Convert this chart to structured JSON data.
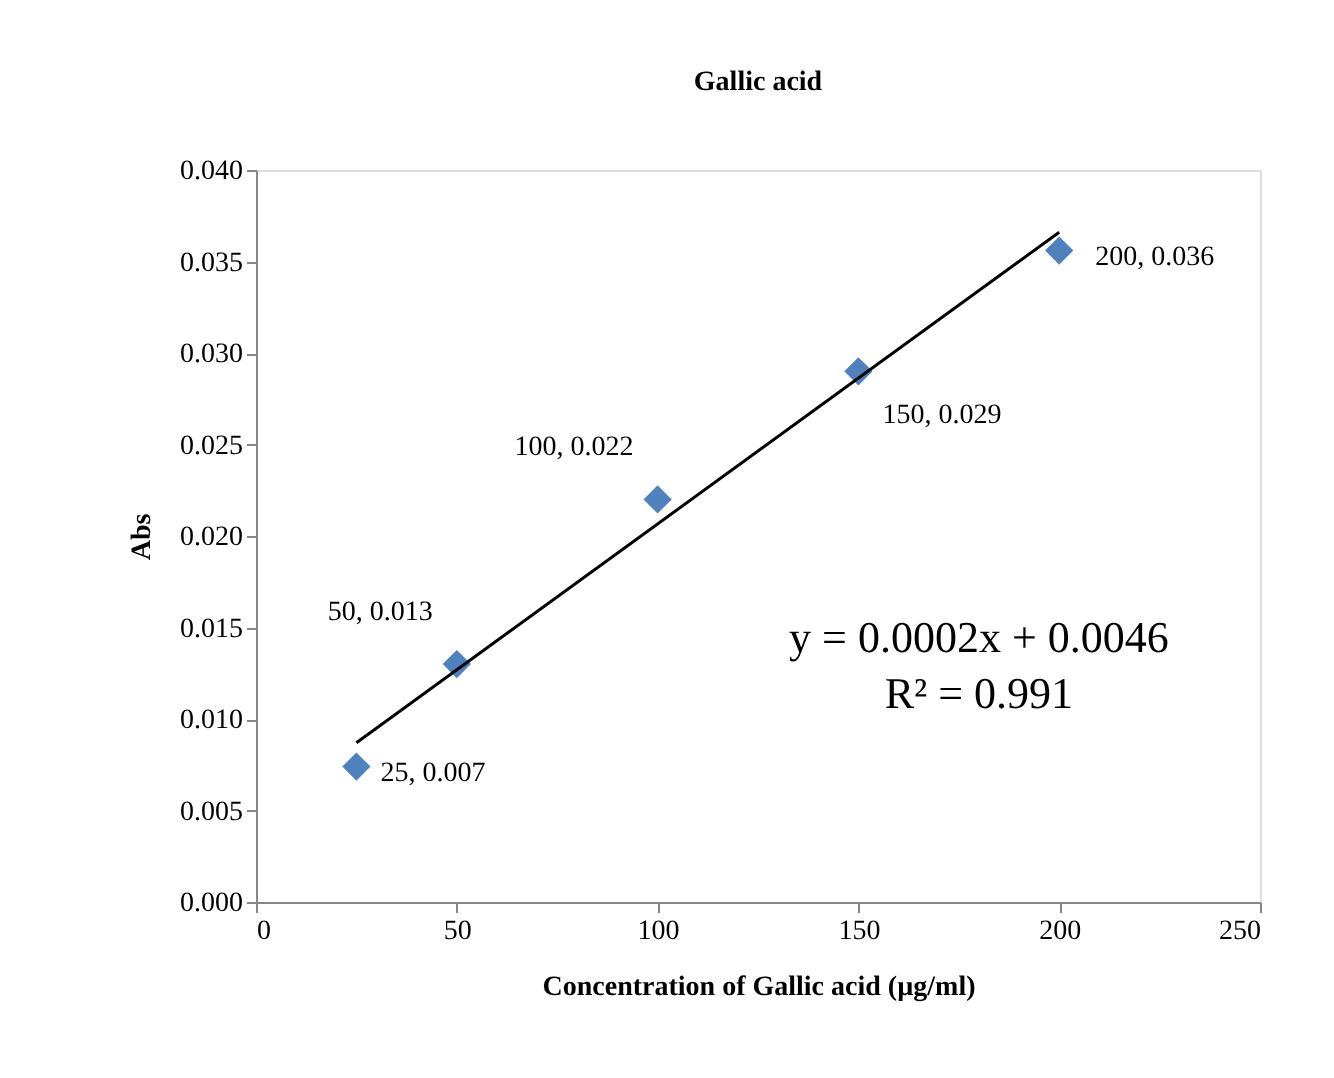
{
  "chart_data": {
    "type": "scatter",
    "title": "Gallic acid",
    "xlabel": "Concentration of Gallic acid  (µg/ml)",
    "ylabel": "Abs",
    "x": [
      25,
      50,
      100,
      150,
      200
    ],
    "series": [
      {
        "marker": "diamond",
        "color": "#4f81bd",
        "values": [
          0.0074,
          0.013,
          0.022,
          0.029,
          0.0356
        ],
        "value_labels": [
          "25, 0.007",
          "50, 0.013",
          "100, 0.022",
          "150, 0.029",
          "200, 0.036"
        ]
      },
      {
        "type": "line",
        "color": "#000000",
        "x": [
          25,
          200
        ],
        "values": [
          0.0087,
          0.0366
        ]
      }
    ],
    "xlim": [
      0,
      250
    ],
    "xticks": [
      0,
      50,
      100,
      150,
      200,
      250
    ],
    "ylim": [
      0,
      0.04
    ],
    "yticks": [
      {
        "value": 0,
        "label": "0.000"
      },
      {
        "value": 0.005,
        "label": "0.005"
      },
      {
        "value": 0.01,
        "label": "0.010"
      },
      {
        "value": 0.015,
        "label": "0.015"
      },
      {
        "value": 0.02,
        "label": "0.020"
      },
      {
        "value": 0.025,
        "label": "0.025"
      },
      {
        "value": 0.03,
        "label": "0.030"
      },
      {
        "value": 0.035,
        "label": "0.035"
      },
      {
        "value": 0.04,
        "label": "0.040"
      }
    ],
    "annotations": [
      "y = 0.0002x + 0.0046",
      "R² = 0.991"
    ]
  }
}
